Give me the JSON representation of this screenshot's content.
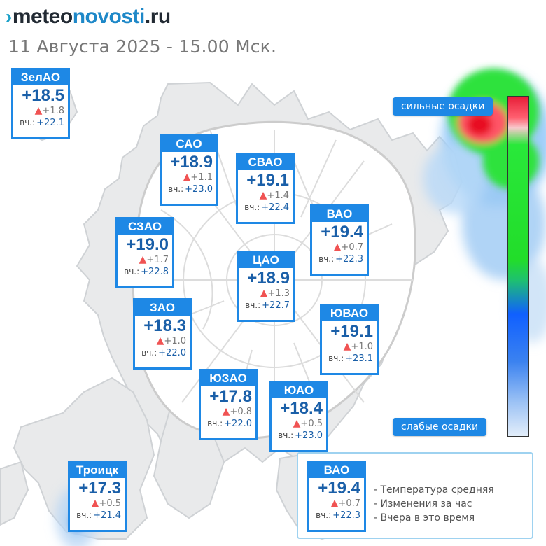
{
  "header": {
    "logo_part1": "meteo",
    "logo_part2": "novosti",
    "logo_part3": ".ru",
    "subtitle": "11 Августа 2025 - 15.00 Мск."
  },
  "colors": {
    "card_border": "#1e88e5",
    "temp_text": "#1a5fa8",
    "arrow_up": "#f05353",
    "precip_heavy": "#e8203a",
    "precip_medium": "#22dd2a",
    "precip_light": "#1060ff"
  },
  "yesterday_label": "вч.:",
  "districts": [
    {
      "id": "zelao",
      "name": "ЗелАО",
      "temp": "+18.5",
      "change": "+1.8",
      "yesterday": "+22.1"
    },
    {
      "id": "sao",
      "name": "САО",
      "temp": "+18.9",
      "change": "+1.1",
      "yesterday": "+23.0"
    },
    {
      "id": "svao",
      "name": "СВАО",
      "temp": "+19.1",
      "change": "+1.4",
      "yesterday": "+22.4"
    },
    {
      "id": "szao",
      "name": "СЗАО",
      "temp": "+19.0",
      "change": "+1.7",
      "yesterday": "+22.8"
    },
    {
      "id": "vao",
      "name": "ВАО",
      "temp": "+19.4",
      "change": "+0.7",
      "yesterday": "+22.3"
    },
    {
      "id": "cao",
      "name": "ЦАО",
      "temp": "+18.9",
      "change": "+1.3",
      "yesterday": "+22.7"
    },
    {
      "id": "zao",
      "name": "ЗАО",
      "temp": "+18.3",
      "change": "+1.0",
      "yesterday": "+22.0"
    },
    {
      "id": "yuvao",
      "name": "ЮВАО",
      "temp": "+19.1",
      "change": "+1.0",
      "yesterday": "+23.1"
    },
    {
      "id": "yuzao",
      "name": "ЮЗАО",
      "temp": "+17.8",
      "change": "+0.8",
      "yesterday": "+22.0"
    },
    {
      "id": "yuao",
      "name": "ЮАО",
      "temp": "+18.4",
      "change": "+0.5",
      "yesterday": "+23.0"
    },
    {
      "id": "troick",
      "name": "Троицк",
      "temp": "+17.3",
      "change": "+0.5",
      "yesterday": "+21.4"
    }
  ],
  "scale": {
    "strong_label": "сильные осадки",
    "weak_label": "слабые осадки"
  },
  "legend": {
    "card": {
      "name": "ВАО",
      "temp": "+19.4",
      "change": "+0.7",
      "yesterday": "+22.3"
    },
    "lines": [
      "- Температура средняя",
      "- Изменения за час",
      "- Вчера в это время"
    ]
  }
}
